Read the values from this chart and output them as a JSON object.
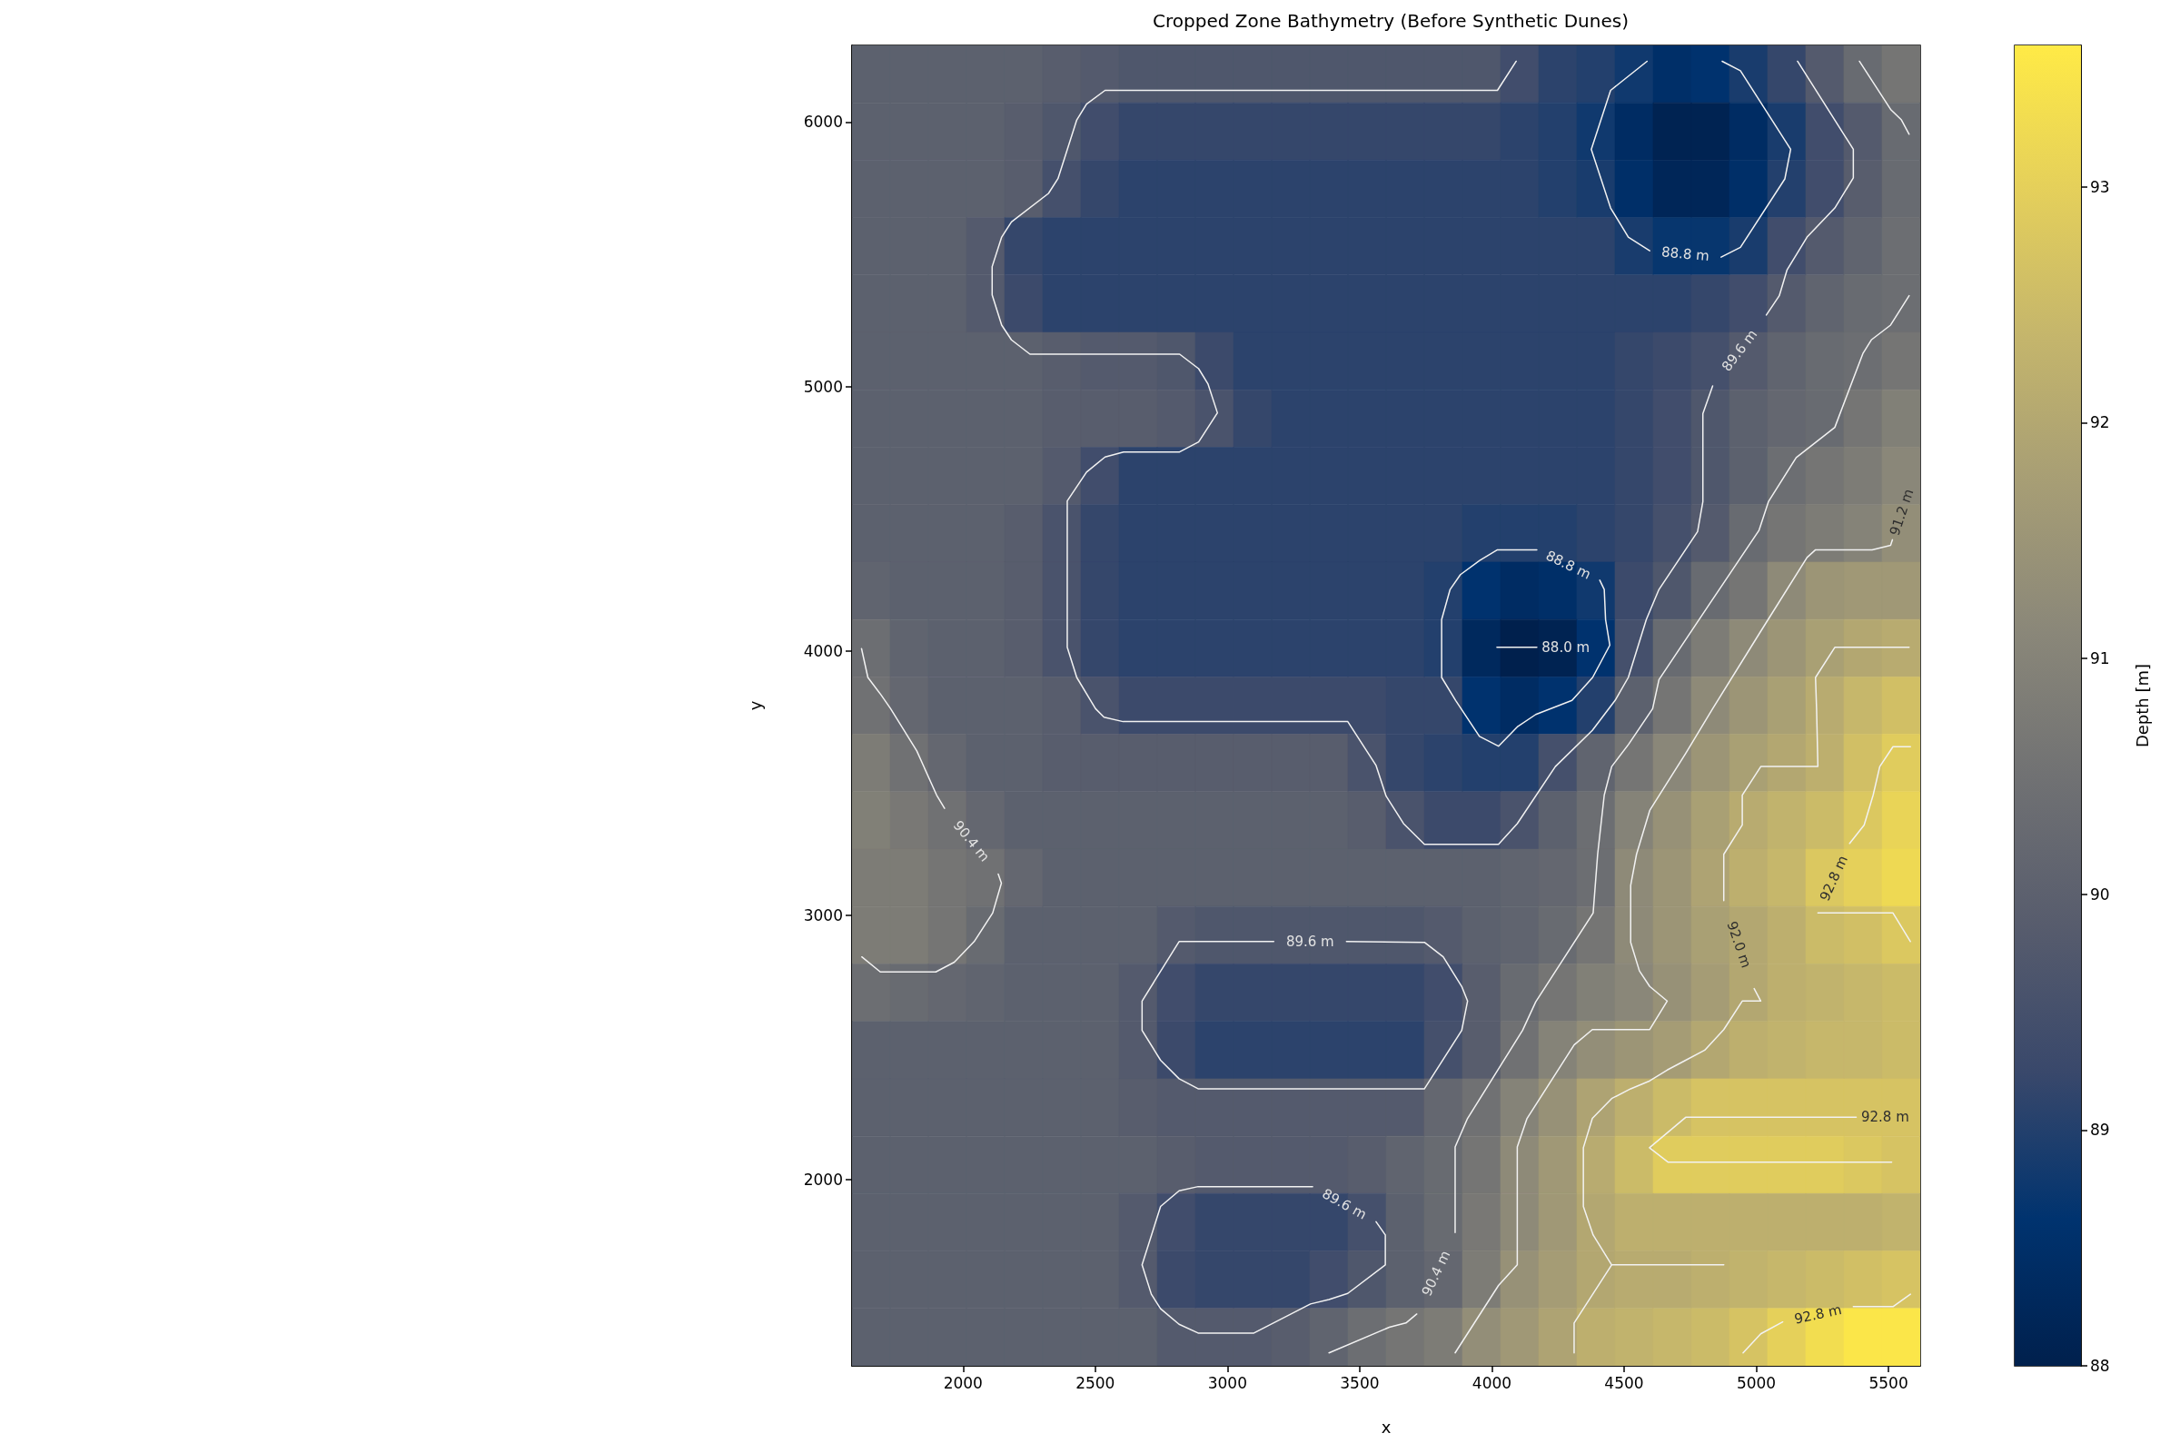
{
  "chart_data": {
    "type": "heatmap",
    "title": "Cropped Zone Bathymetry (Before Synthetic Dunes)",
    "xlabel": "x",
    "ylabel": "y",
    "clabel": "Depth [m]",
    "xlim": [
      1580,
      5620
    ],
    "ylim": [
      1295,
      6290
    ],
    "xticks": [
      2000,
      2500,
      3000,
      3500,
      4000,
      4500,
      5000,
      5500
    ],
    "yticks": [
      2000,
      3000,
      4000,
      5000,
      6000
    ],
    "clim": [
      88,
      93.6
    ],
    "cticks": [
      88,
      89,
      90,
      91,
      92,
      93
    ],
    "cells": [
      [
        90.0,
        90.0,
        90.0,
        90.0,
        90.0,
        89.9,
        89.8,
        89.7,
        89.7,
        89.7,
        89.7,
        89.7,
        89.7,
        89.7,
        89.7,
        89.7,
        89.7,
        89.4,
        89.1,
        89.0,
        88.8,
        88.5,
        88.6,
        88.9,
        89.2,
        89.8,
        90.3,
        90.6
      ],
      [
        90.0,
        90.0,
        90.0,
        90.0,
        89.9,
        89.7,
        89.4,
        89.2,
        89.2,
        89.2,
        89.2,
        89.2,
        89.2,
        89.2,
        89.2,
        89.2,
        89.2,
        89.1,
        89.0,
        88.8,
        88.4,
        88.1,
        88.1,
        88.4,
        88.9,
        89.4,
        89.8,
        90.3
      ],
      [
        90.0,
        90.0,
        90.0,
        90.0,
        89.9,
        89.5,
        89.2,
        89.1,
        89.1,
        89.1,
        89.1,
        89.1,
        89.1,
        89.1,
        89.1,
        89.1,
        89.1,
        89.1,
        89.0,
        88.9,
        88.5,
        88.2,
        88.2,
        88.5,
        89.0,
        89.4,
        89.9,
        90.3
      ],
      [
        90.0,
        90.0,
        90.0,
        89.8,
        89.2,
        89.1,
        89.1,
        89.1,
        89.1,
        89.1,
        89.1,
        89.1,
        89.1,
        89.1,
        89.1,
        89.1,
        89.1,
        89.1,
        89.1,
        89.1,
        88.9,
        88.7,
        88.7,
        88.9,
        89.4,
        89.8,
        90.1,
        90.4
      ],
      [
        90.0,
        90.0,
        90.0,
        89.8,
        89.3,
        89.1,
        89.1,
        89.1,
        89.1,
        89.1,
        89.1,
        89.1,
        89.1,
        89.1,
        89.1,
        89.1,
        89.1,
        89.1,
        89.1,
        89.1,
        89.1,
        89.1,
        89.2,
        89.4,
        89.8,
        90.1,
        90.3,
        90.4
      ],
      [
        90.0,
        90.0,
        90.0,
        90.0,
        90.0,
        89.9,
        89.8,
        89.8,
        89.7,
        89.3,
        89.1,
        89.1,
        89.1,
        89.1,
        89.1,
        89.1,
        89.1,
        89.1,
        89.1,
        89.1,
        89.2,
        89.3,
        89.5,
        89.8,
        90.1,
        90.3,
        90.4,
        90.6
      ],
      [
        90.0,
        90.0,
        90.0,
        90.0,
        90.0,
        89.9,
        89.9,
        89.9,
        89.8,
        89.6,
        89.2,
        89.1,
        89.1,
        89.1,
        89.1,
        89.1,
        89.1,
        89.1,
        89.1,
        89.1,
        89.2,
        89.4,
        89.7,
        90.0,
        90.2,
        90.3,
        90.6,
        90.9
      ],
      [
        90.0,
        90.0,
        90.0,
        90.0,
        90.0,
        89.8,
        89.4,
        89.1,
        89.1,
        89.1,
        89.1,
        89.1,
        89.1,
        89.1,
        89.1,
        89.1,
        89.1,
        89.1,
        89.1,
        89.1,
        89.2,
        89.4,
        89.7,
        90.0,
        90.4,
        90.6,
        90.8,
        91.1
      ],
      [
        90.0,
        90.0,
        90.0,
        90.0,
        89.9,
        89.6,
        89.2,
        89.1,
        89.1,
        89.1,
        89.1,
        89.1,
        89.1,
        89.1,
        89.1,
        89.1,
        89.0,
        89.0,
        89.0,
        89.1,
        89.2,
        89.5,
        89.8,
        90.3,
        90.6,
        90.8,
        91.0,
        91.3
      ],
      [
        90.1,
        90.0,
        90.0,
        90.0,
        89.9,
        89.6,
        89.2,
        89.1,
        89.1,
        89.1,
        89.1,
        89.1,
        89.1,
        89.1,
        89.1,
        89.0,
        88.6,
        88.4,
        88.5,
        88.8,
        89.3,
        89.7,
        90.3,
        90.6,
        91.2,
        91.5,
        91.6,
        91.6
      ],
      [
        90.4,
        90.1,
        90.0,
        90.0,
        89.9,
        89.6,
        89.2,
        89.1,
        89.1,
        89.1,
        89.1,
        89.1,
        89.1,
        89.1,
        89.1,
        89.0,
        88.3,
        88.0,
        88.1,
        88.6,
        89.5,
        90.3,
        90.8,
        91.2,
        91.5,
        91.8,
        92.0,
        92.1
      ],
      [
        90.5,
        90.2,
        90.0,
        90.0,
        90.0,
        89.9,
        89.6,
        89.3,
        89.3,
        89.3,
        89.3,
        89.3,
        89.3,
        89.3,
        89.2,
        89.2,
        88.6,
        88.4,
        88.6,
        89.0,
        90.0,
        90.6,
        91.2,
        91.5,
        91.8,
        92.1,
        92.4,
        92.6
      ],
      [
        90.8,
        90.5,
        90.2,
        90.0,
        90.0,
        89.9,
        89.9,
        89.9,
        89.9,
        89.9,
        89.9,
        89.9,
        89.9,
        89.6,
        89.2,
        89.1,
        89.0,
        89.0,
        89.5,
        90.1,
        90.6,
        91.1,
        91.5,
        91.8,
        92.0,
        92.2,
        92.6,
        92.9
      ],
      [
        90.9,
        90.7,
        90.5,
        90.2,
        90.0,
        90.0,
        90.0,
        90.0,
        90.0,
        90.0,
        90.0,
        90.0,
        90.0,
        89.9,
        89.6,
        89.3,
        89.3,
        89.6,
        90.0,
        90.4,
        91.0,
        91.4,
        91.8,
        92.1,
        92.3,
        92.5,
        92.8,
        93.1
      ],
      [
        90.8,
        90.8,
        90.6,
        90.5,
        90.2,
        90.0,
        90.0,
        90.0,
        90.0,
        90.0,
        90.0,
        90.0,
        90.0,
        90.0,
        90.0,
        90.0,
        90.0,
        90.1,
        90.2,
        90.4,
        91.2,
        91.5,
        91.9,
        92.2,
        92.4,
        92.8,
        93.0,
        93.2
      ],
      [
        90.8,
        90.8,
        90.6,
        90.3,
        90.0,
        90.0,
        90.0,
        90.0,
        89.8,
        89.7,
        89.7,
        89.7,
        89.7,
        89.7,
        89.7,
        89.8,
        90.0,
        90.1,
        90.3,
        90.6,
        91.2,
        91.5,
        91.8,
        92.0,
        92.2,
        92.5,
        92.6,
        92.8
      ],
      [
        90.4,
        90.3,
        90.2,
        90.1,
        90.0,
        90.0,
        90.0,
        89.8,
        89.4,
        89.2,
        89.2,
        89.2,
        89.2,
        89.2,
        89.2,
        89.4,
        89.9,
        90.3,
        90.6,
        90.9,
        91.1,
        91.4,
        91.7,
        92.0,
        92.2,
        92.3,
        92.4,
        92.5
      ],
      [
        90.0,
        90.0,
        90.0,
        90.0,
        90.0,
        90.0,
        90.0,
        89.8,
        89.3,
        89.1,
        89.1,
        89.1,
        89.1,
        89.1,
        89.1,
        89.5,
        89.9,
        90.5,
        91.0,
        91.3,
        91.5,
        91.7,
        92.0,
        92.2,
        92.3,
        92.4,
        92.4,
        92.5
      ],
      [
        90.0,
        90.0,
        90.0,
        90.0,
        90.0,
        90.0,
        90.0,
        89.9,
        89.8,
        89.8,
        89.8,
        89.8,
        89.8,
        89.8,
        89.8,
        90.2,
        90.5,
        91.0,
        91.4,
        91.9,
        92.2,
        92.5,
        92.7,
        92.7,
        92.7,
        92.7,
        92.7,
        92.7
      ],
      [
        90.0,
        90.0,
        90.0,
        90.0,
        90.0,
        90.0,
        90.0,
        90.0,
        89.9,
        89.8,
        89.8,
        89.8,
        89.8,
        89.9,
        90.1,
        90.3,
        90.6,
        91.2,
        91.6,
        92.1,
        92.5,
        92.9,
        92.9,
        92.9,
        92.9,
        92.9,
        92.8,
        92.7
      ],
      [
        90.0,
        90.0,
        90.0,
        90.0,
        90.0,
        90.0,
        90.0,
        89.8,
        89.4,
        89.2,
        89.2,
        89.2,
        89.2,
        89.5,
        90.0,
        90.3,
        90.7,
        91.2,
        91.6,
        92.0,
        92.2,
        92.2,
        92.2,
        92.2,
        92.2,
        92.2,
        92.2,
        92.3
      ],
      [
        90.0,
        90.0,
        90.0,
        90.0,
        90.0,
        90.0,
        90.0,
        89.8,
        89.3,
        89.2,
        89.2,
        89.2,
        89.4,
        89.7,
        90.0,
        90.2,
        90.8,
        91.4,
        91.7,
        92.0,
        92.1,
        92.1,
        92.2,
        92.3,
        92.4,
        92.5,
        92.6,
        92.7
      ],
      [
        90.0,
        90.0,
        90.0,
        90.0,
        90.0,
        90.0,
        90.0,
        90.0,
        89.8,
        89.8,
        89.8,
        89.9,
        90.1,
        90.4,
        90.6,
        90.8,
        91.3,
        91.6,
        91.9,
        92.2,
        92.3,
        92.4,
        92.5,
        92.7,
        93.0,
        93.3,
        93.5,
        93.5
      ]
    ],
    "series": [
      {
        "type": "line",
        "name": "89.6 m",
        "color": "#f2f2f2",
        "x": [
          4092,
          4021,
          2537,
          2467,
          2430,
          2359,
          2323,
          2183,
          2146,
          2110,
          2110,
          2146,
          2183,
          2253,
          2819,
          2891,
          2926,
          2962,
          2891,
          2819,
          2607,
          2537,
          2467,
          2394,
          2394,
          2430,
          2501,
          2533,
          2605,
          3455,
          3562,
          3600,
          3666,
          3745,
          4025,
          4096,
          4240,
          4380,
          4466,
          4516,
          4584,
          4632,
          4778,
          4798,
          4798,
          4835,
          null,
          5038,
          5087,
          5116,
          5192,
          5297,
          5367,
          5367,
          5156
        ],
        "values": [
          6230,
          6120,
          6120,
          6068,
          6008,
          5786,
          5730,
          5622,
          5565,
          5453,
          5346,
          5232,
          5176,
          5122,
          5122,
          5067,
          5010,
          4900,
          4790,
          4752,
          4752,
          4733,
          4676,
          4567,
          4013,
          3899,
          3781,
          3749,
          3732,
          3732,
          3566,
          3450,
          3346,
          3268,
          3268,
          3346,
          3562,
          3699,
          3812,
          3899,
          4118,
          4232,
          4451,
          4564,
          4897,
          5002,
          null,
          5270,
          5343,
          5440,
          5565,
          5675,
          5789,
          5897,
          6230
        ]
      },
      {
        "type": "line",
        "name": "88.8 m",
        "color": "#f2f2f2",
        "x": [
          4587,
          4449,
          4376,
          4449,
          4516,
          4597,
          null,
          4867,
          4940,
          5108,
          5130,
          4940,
          4871
        ],
        "values": [
          6230,
          6120,
          5897,
          5675,
          5565,
          5513,
          null,
          5489,
          5526,
          5785,
          5897,
          6194,
          6230
        ]
      },
      {
        "type": "line",
        "name": "88.8 m",
        "color": "#f2f2f2",
        "x": [
          3810,
          3842,
          3881,
          3954,
          4021,
          4170,
          null,
          4408,
          4425,
          4430,
          4446,
          4381,
          4303,
          4166,
          4096,
          4025,
          3953,
          3863,
          3810,
          3810
        ],
        "values": [
          4118,
          4232,
          4288,
          4342,
          4382,
          4382,
          null,
          4267,
          4232,
          4118,
          4021,
          3899,
          3812,
          3759,
          3712,
          3639,
          3676,
          3812,
          3899,
          4118
        ]
      },
      {
        "type": "line",
        "name": "88.0 m",
        "color": "#f2f2f2",
        "x": [
          4170,
          4019
        ],
        "values": [
          4013,
          4013
        ]
      },
      {
        "type": "line",
        "name": "89.6 m",
        "color": "#f2f2f2",
        "x": [
          3745,
          2889,
          2817,
          2747,
          2677,
          2677,
          2817,
          3175,
          null,
          3450,
          3745,
          3816,
          3886,
          3908,
          3886,
          3745
        ],
        "values": [
          2343,
          2343,
          2381,
          2451,
          2564,
          2675,
          2900,
          2900,
          null,
          2900,
          2897,
          2842,
          2730,
          2675,
          2564,
          2343
        ]
      },
      {
        "type": "line",
        "name": "89.6 m",
        "color": "#f2f2f2",
        "x": [
          2677,
          2712,
          2747,
          2817,
          2889,
          3100,
          3314,
          3384,
          3455,
          3597,
          3597,
          3562,
          null,
          3322,
          2889,
          2817,
          2747,
          2677
        ],
        "values": [
          1677,
          1566,
          1511,
          1452,
          1419,
          1419,
          1529,
          1546,
          1569,
          1677,
          1790,
          1840,
          null,
          1973,
          1973,
          1957,
          1898,
          1677
        ]
      },
      {
        "type": "line",
        "name": "90.4 m",
        "color": "#f2f2f2",
        "x": [
          1616,
          1640,
          1689,
          1726,
          1825,
          1900,
          1930,
          null,
          2133,
          2145,
          2112,
          2042,
          1967,
          1897,
          1687,
          1617
        ],
        "values": [
          4008,
          3899,
          3834,
          3781,
          3621,
          3454,
          3404,
          null,
          3155,
          3121,
          3008,
          2900,
          2822,
          2785,
          2785,
          2842
        ]
      },
      {
        "type": "line",
        "name": "90.4 m",
        "color": "#f2f2f2",
        "x": [
          5578,
          5508,
          5435,
          5403,
          5297,
          5151,
          5046,
          5010,
          4811,
          4632,
          4608,
          4517,
          4453,
          4425,
          4400,
          4383,
          4166,
          4116,
          3908,
          3861,
          3861,
          null,
          3716,
          3675,
          3612,
          3384
        ],
        "values": [
          5343,
          5232,
          5176,
          5124,
          4845,
          4731,
          4564,
          4455,
          4159,
          3891,
          3781,
          3646,
          3562,
          3454,
          3230,
          3008,
          2672,
          2564,
          2231,
          2123,
          1799,
          null,
          1491,
          1457,
          1441,
          1344
        ]
      },
      {
        "type": "line",
        "color": "#f2f2f2",
        "x": [
          5390,
          5508,
          5549,
          5578
        ],
        "values": [
          6230,
          6048,
          6008,
          5954
        ]
      },
      {
        "type": "line",
        "name": "91.2 m",
        "color": "#f2f2f2",
        "x": [
          5515,
          5508,
          5438,
          5224,
          5192,
          5014,
          4835,
          4733,
          4597,
          4547,
          4525,
          4525,
          4558,
          4597,
          4663,
          4597,
          4380,
          4311,
          4133,
          4096,
          4096,
          4025,
          3861
        ],
        "values": [
          4420,
          4399,
          4382,
          4382,
          4353,
          4069,
          3781,
          3612,
          3396,
          3230,
          3113,
          2897,
          2789,
          2730,
          2675,
          2567,
          2567,
          2509,
          2231,
          2123,
          1677,
          1599,
          1344
        ]
      },
      {
        "type": "line",
        "name": "92.0 m",
        "color": "#f2f2f2",
        "x": [
          5578,
          5297,
          5224,
          5228,
          5233,
          5017,
          4947,
          4947,
          4877,
          4877,
          null,
          4992,
          5017,
          4947,
          4877,
          4805,
          4733,
          4663,
          4597,
          4525,
          4453,
          4380,
          4346,
          4346,
          4383,
          4453,
          4311,
          4311
        ],
        "values": [
          4013,
          4013,
          3899,
          3781,
          3562,
          3562,
          3454,
          3341,
          3230,
          3055,
          null,
          2722,
          2675,
          2675,
          2567,
          2489,
          2451,
          2414,
          2373,
          2343,
          2306,
          2231,
          2120,
          1898,
          1790,
          1677,
          1457,
          1344
        ]
      },
      {
        "type": "line",
        "color": "#f2f2f2",
        "x": [
          4453,
          4877
        ],
        "values": [
          1677,
          1677
        ]
      },
      {
        "type": "line",
        "name": "92.8 m",
        "color": "#f2f2f2",
        "x": [
          5583,
          5517,
          5467,
          5442,
          5408,
          5353,
          null,
          5233,
          5517,
          5583
        ],
        "values": [
          3637,
          3637,
          3562,
          3454,
          3341,
          3271,
          null,
          3008,
          3008,
          2900
        ]
      },
      {
        "type": "line",
        "name": "92.8 m",
        "color": "#f2f2f2",
        "x": [
          5378,
          4733,
          4596,
          4667,
          5512
        ],
        "values": [
          2235,
          2235,
          2120,
          2065,
          2065
        ]
      },
      {
        "type": "line",
        "name": "92.8 m",
        "color": "#f2f2f2",
        "x": [
          4950,
          5017,
          5100,
          null,
          5367,
          5517,
          5583
        ],
        "values": [
          1344,
          1416,
          1461,
          null,
          1519,
          1519,
          1566
        ]
      }
    ]
  }
}
